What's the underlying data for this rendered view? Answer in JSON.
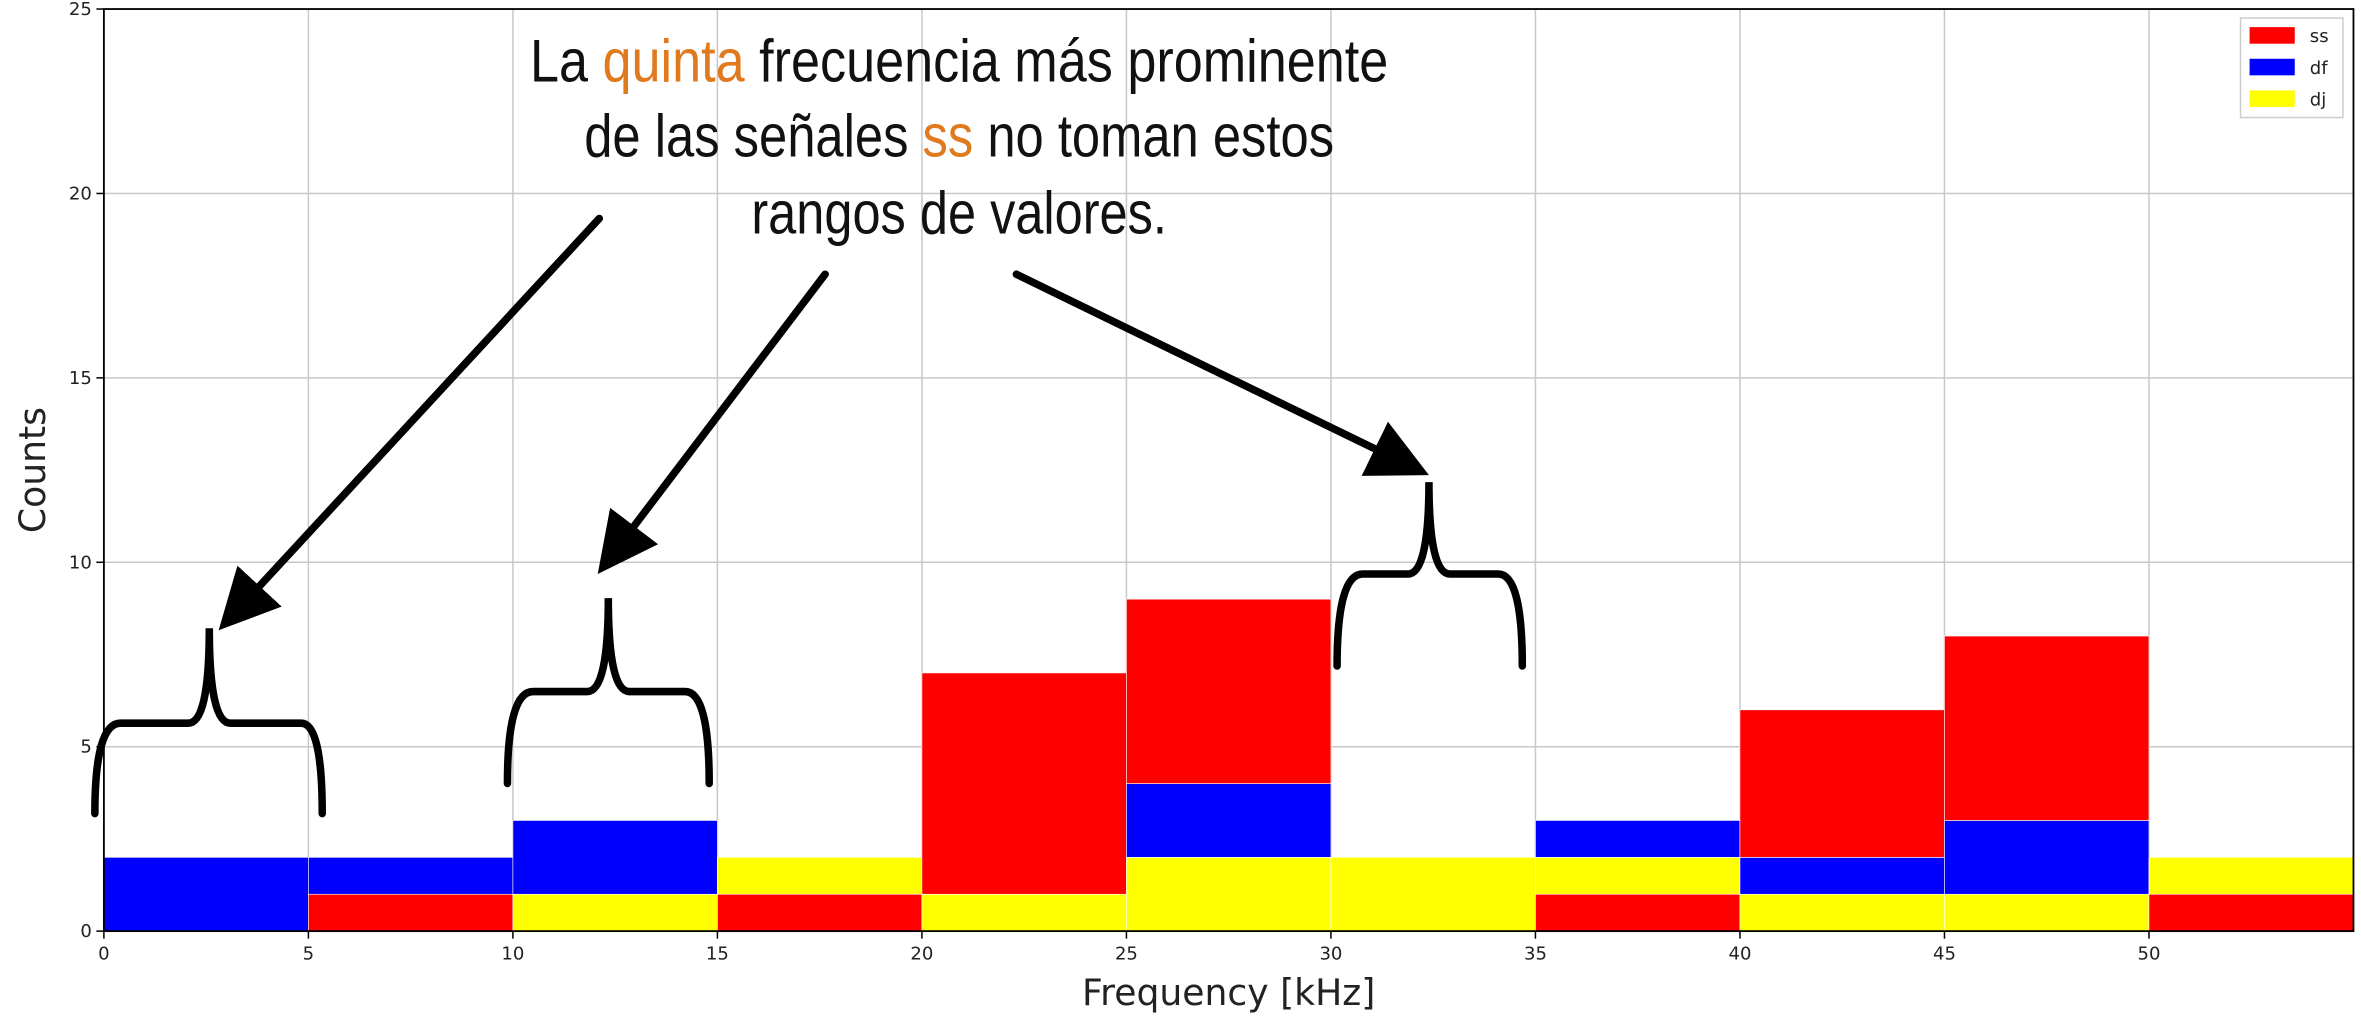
{
  "chart_data": {
    "type": "stacked-histogram",
    "xlabel": "Frequency [kHz]",
    "ylabel": "Counts",
    "bins": [
      0,
      5,
      10,
      15,
      20,
      25,
      30,
      35,
      40,
      45,
      50,
      55
    ],
    "series": [
      {
        "name": "ss",
        "color": "#ff0000",
        "values": [
          0,
          1,
          0,
          1,
          6,
          5,
          0,
          1,
          4,
          5,
          1
        ]
      },
      {
        "name": "df",
        "color": "#0000ff",
        "values": [
          2,
          1,
          2,
          0,
          0,
          2,
          0,
          1,
          1,
          2,
          0
        ]
      },
      {
        "name": "dj",
        "color": "#ffff00",
        "values": [
          0,
          0,
          1,
          1,
          1,
          2,
          2,
          1,
          1,
          1,
          1
        ]
      }
    ],
    "xlim": [
      0,
      55
    ],
    "xticks": [
      0,
      5,
      10,
      15,
      20,
      25,
      30,
      35,
      40,
      45,
      50
    ],
    "ylim": [
      0,
      25
    ],
    "yticks": [
      0,
      5,
      10,
      15,
      20,
      25
    ],
    "grid": true,
    "legend": "upper right",
    "annotation": [
      [
        "La ",
        "quinta",
        " frecuencia más prominente"
      ],
      [
        "de las señales ",
        "ss",
        " no toman estos"
      ],
      [
        "rangos de valores."
      ]
    ]
  }
}
